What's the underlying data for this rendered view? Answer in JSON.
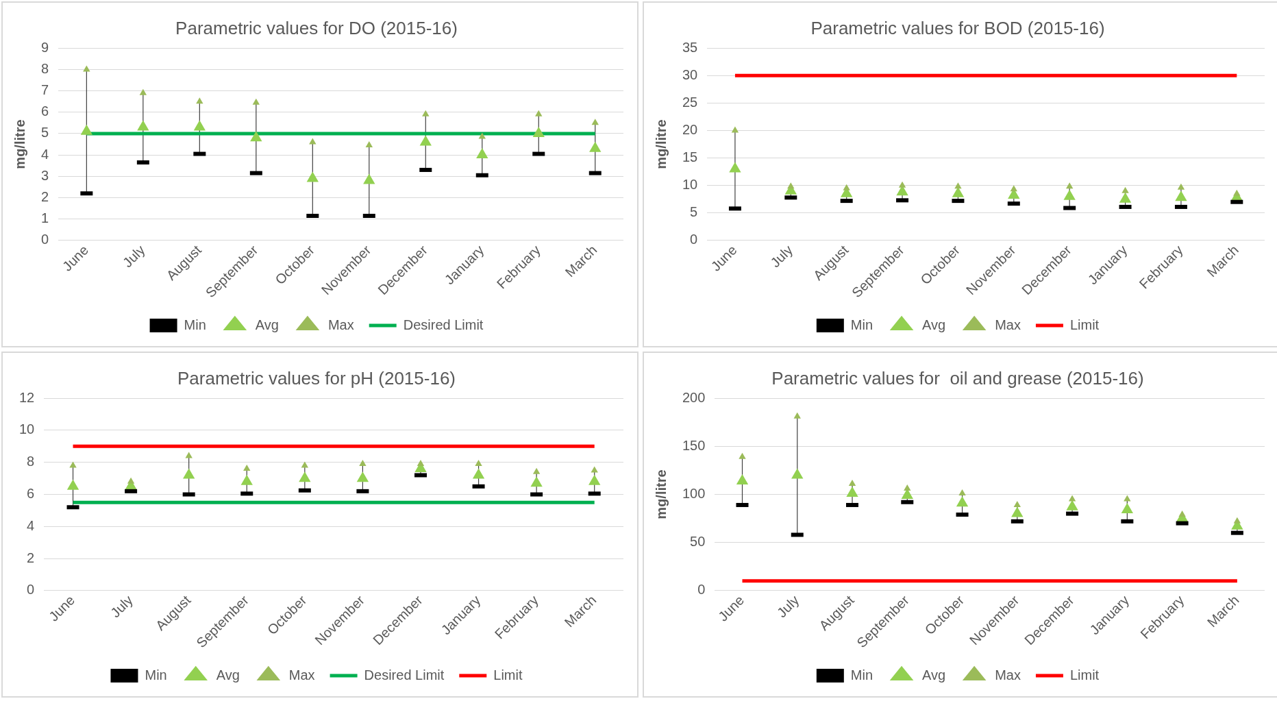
{
  "chart_data": [
    {
      "type": "scatter",
      "title": "Parametric values for DO (2015-16)",
      "ylabel": "mg/litre",
      "categories": [
        "June",
        "July",
        "August",
        "September",
        "October",
        "November",
        "December",
        "January",
        "February",
        "March"
      ],
      "ylim": [
        0,
        9
      ],
      "yticks": [
        0,
        1,
        2,
        3,
        4,
        5,
        6,
        7,
        8,
        9
      ],
      "grid": "y",
      "legend": "bottom",
      "series": [
        {
          "name": "Min",
          "color": "#000000",
          "marker": "square",
          "values": [
            2.2,
            3.65,
            4.05,
            3.15,
            1.15,
            1.15,
            3.3,
            3.05,
            4.05,
            3.15
          ]
        },
        {
          "name": "Avg",
          "color": "#92d050",
          "marker": "triangle",
          "values": [
            5.1,
            5.3,
            5.3,
            4.8,
            2.9,
            2.8,
            4.6,
            4.0,
            5.0,
            4.3
          ]
        },
        {
          "name": "Max",
          "color": "#9bbb59",
          "marker": "triangle",
          "values": [
            8.0,
            6.9,
            6.5,
            6.45,
            4.6,
            4.45,
            5.9,
            4.85,
            5.9,
            5.5
          ]
        },
        {
          "name": "Desired Limit",
          "type": "line",
          "color": "#00b050",
          "marker": "none",
          "values": [
            5,
            5,
            5,
            5,
            5,
            5,
            5,
            5,
            5,
            5
          ]
        }
      ]
    },
    {
      "type": "scatter",
      "title": "Parametric values for BOD (2015-16)",
      "ylabel": "mg/litre",
      "categories": [
        "June",
        "July",
        "August",
        "September",
        "October",
        "November",
        "December",
        "January",
        "February",
        "March"
      ],
      "ylim": [
        0,
        35
      ],
      "yticks": [
        0,
        5,
        10,
        15,
        20,
        25,
        30,
        35
      ],
      "grid": "y",
      "legend": "bottom",
      "series": [
        {
          "name": "Min",
          "color": "#000000",
          "marker": "square",
          "values": [
            5.8,
            7.8,
            7.2,
            7.3,
            7.2,
            6.7,
            5.9,
            6.1,
            6.1,
            7.0
          ]
        },
        {
          "name": "Avg",
          "color": "#92d050",
          "marker": "triangle",
          "values": [
            13,
            9,
            8.5,
            8.8,
            8.5,
            8.2,
            8.0,
            7.5,
            7.8,
            7.8
          ]
        },
        {
          "name": "Max",
          "color": "#9bbb59",
          "marker": "triangle",
          "values": [
            20,
            9.8,
            9.5,
            10,
            9.8,
            9.3,
            9.8,
            9.0,
            9.6,
            8.5
          ]
        },
        {
          "name": "Limit",
          "type": "line",
          "color": "#ff0000",
          "marker": "none",
          "values": [
            30,
            30,
            30,
            30,
            30,
            30,
            30,
            30,
            30,
            30
          ]
        }
      ]
    },
    {
      "type": "scatter",
      "title": "Parametric values for pH (2015-16)",
      "categories": [
        "June",
        "July",
        "August",
        "September",
        "October",
        "November",
        "December",
        "January",
        "February",
        "March"
      ],
      "ylim": [
        0,
        12
      ],
      "yticks": [
        0,
        2,
        4,
        6,
        8,
        10,
        12
      ],
      "grid": "y",
      "legend": "bottom",
      "series": [
        {
          "name": "Min",
          "color": "#000000",
          "marker": "square",
          "values": [
            5.2,
            6.2,
            6.0,
            6.05,
            6.25,
            6.2,
            7.2,
            6.5,
            6.0,
            6.05
          ]
        },
        {
          "name": "Avg",
          "color": "#92d050",
          "marker": "triangle",
          "values": [
            6.5,
            6.5,
            7.2,
            6.8,
            7.0,
            7.0,
            7.6,
            7.2,
            6.7,
            6.8
          ]
        },
        {
          "name": "Max",
          "color": "#9bbb59",
          "marker": "triangle",
          "values": [
            7.8,
            6.8,
            8.4,
            7.6,
            7.8,
            7.9,
            7.9,
            7.9,
            7.4,
            7.5
          ]
        },
        {
          "name": "Desired Limit",
          "type": "line",
          "color": "#00b050",
          "marker": "none",
          "values": [
            5.5,
            5.5,
            5.5,
            5.5,
            5.5,
            5.5,
            5.5,
            5.5,
            5.5,
            5.5
          ]
        },
        {
          "name": "Limit",
          "type": "line",
          "color": "#ff0000",
          "marker": "none",
          "values": [
            9,
            9,
            9,
            9,
            9,
            9,
            9,
            9,
            9,
            9
          ]
        }
      ]
    },
    {
      "type": "scatter",
      "title": "Parametric values for  oil and grease (2015-16)",
      "ylabel": "mg/litre",
      "categories": [
        "June",
        "July",
        "August",
        "September",
        "October",
        "November",
        "December",
        "January",
        "February",
        "March"
      ],
      "ylim": [
        0,
        200
      ],
      "yticks": [
        0,
        50,
        100,
        150,
        200
      ],
      "grid": "y",
      "legend": "bottom",
      "series": [
        {
          "name": "Min",
          "color": "#000000",
          "marker": "square",
          "values": [
            89,
            58,
            89,
            92,
            79,
            72,
            80,
            72,
            70,
            60
          ]
        },
        {
          "name": "Avg",
          "color": "#92d050",
          "marker": "triangle",
          "values": [
            114,
            120,
            101,
            99,
            91,
            80,
            87,
            84,
            75,
            67
          ]
        },
        {
          "name": "Max",
          "color": "#9bbb59",
          "marker": "triangle",
          "values": [
            139,
            181,
            111,
            106,
            101,
            89,
            95,
            95,
            79,
            72
          ]
        },
        {
          "name": "Limit",
          "type": "line",
          "color": "#ff0000",
          "marker": "none",
          "values": [
            10,
            10,
            10,
            10,
            10,
            10,
            10,
            10,
            10,
            10
          ]
        }
      ]
    }
  ]
}
